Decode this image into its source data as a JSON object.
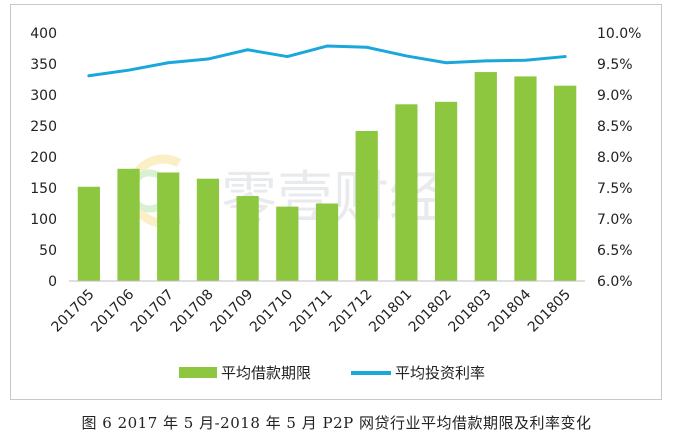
{
  "chart_data": {
    "type": "bar+line",
    "title": "",
    "categories": [
      "201705",
      "201706",
      "201707",
      "201708",
      "201709",
      "201710",
      "201711",
      "201712",
      "201801",
      "201802",
      "201803",
      "201804",
      "201805"
    ],
    "series": [
      {
        "name": "平均借款期限",
        "type": "bar",
        "axis": "left",
        "color": "#8dc63f",
        "values": [
          152,
          181,
          175,
          165,
          137,
          120,
          125,
          242,
          285,
          289,
          337,
          330,
          315
        ]
      },
      {
        "name": "平均投资利率",
        "type": "line",
        "axis": "right",
        "color": "#1aa7dc",
        "values": [
          9.31,
          9.4,
          9.52,
          9.58,
          9.73,
          9.62,
          9.79,
          9.77,
          9.63,
          9.52,
          9.55,
          9.56,
          9.62
        ]
      }
    ],
    "y_left": {
      "min": 0,
      "max": 400,
      "step": 50,
      "ticks": [
        "0",
        "50",
        "100",
        "150",
        "200",
        "250",
        "300",
        "350",
        "400"
      ]
    },
    "y_right": {
      "min": 6.0,
      "max": 10.0,
      "step": 0.5,
      "ticks": [
        "6.0%",
        "6.5%",
        "7.0%",
        "7.5%",
        "8.0%",
        "8.5%",
        "9.0%",
        "9.5%",
        "10.0%"
      ]
    },
    "legend_position": "bottom",
    "grid": false
  },
  "watermark": {
    "text": "零壹财经"
  },
  "caption": "图 6  2017 年 5 月-2018 年 5 月 P2P 网贷行业平均借款期限及利率变化"
}
